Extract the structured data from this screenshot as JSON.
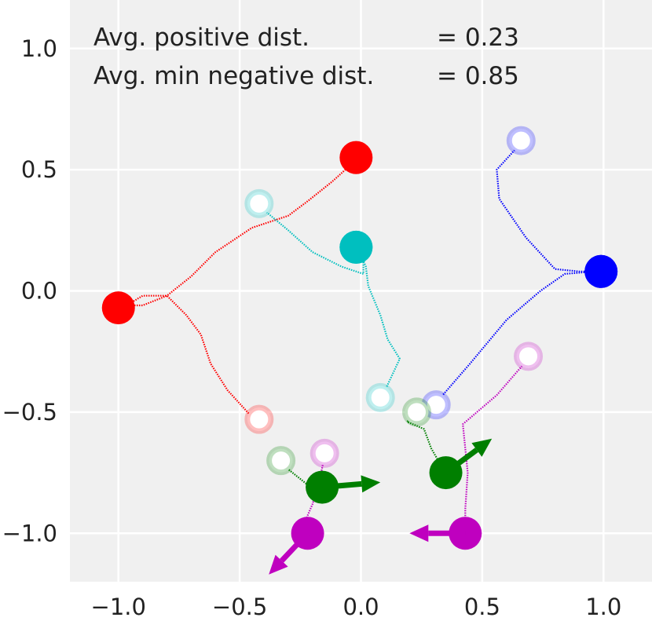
{
  "chart_data": {
    "type": "scatter",
    "title": "",
    "xlabel": "",
    "ylabel": "",
    "xlim": [
      -1.2,
      1.2
    ],
    "ylim": [
      -1.2,
      1.2
    ],
    "grid": true,
    "background": "#f0f0f0",
    "x_ticks": [
      {
        "value": -1.0,
        "label": "−1.0"
      },
      {
        "value": -0.5,
        "label": "−0.5"
      },
      {
        "value": 0.0,
        "label": "0.0"
      },
      {
        "value": 0.5,
        "label": "0.5"
      },
      {
        "value": 1.0,
        "label": "1.0"
      }
    ],
    "y_ticks": [
      {
        "value": 1.0,
        "label": "1.0"
      },
      {
        "value": 0.5,
        "label": "0.5"
      },
      {
        "value": 0.0,
        "label": "0.0"
      },
      {
        "value": -0.5,
        "label": "−0.5"
      },
      {
        "value": -1.0,
        "label": "−1.0"
      }
    ],
    "annotations": {
      "positive_label": "Avg. positive dist.",
      "positive_value": "= 0.23",
      "negative_label": "Avg. min negative dist.",
      "negative_value": "= 0.85"
    },
    "series": [
      {
        "name": "red",
        "color": "#ff0000",
        "agents": [
          {
            "x": -1.0,
            "y": -0.07,
            "dir": null,
            "path": [
              [
                -0.45,
                -0.52
              ],
              [
                -0.55,
                -0.41
              ],
              [
                -0.62,
                -0.3
              ],
              [
                -0.66,
                -0.18
              ],
              [
                -0.72,
                -0.1
              ],
              [
                -0.8,
                -0.02
              ],
              [
                -0.9,
                -0.02
              ],
              [
                -0.95,
                -0.05
              ]
            ]
          },
          {
            "x": -0.02,
            "y": 0.55,
            "dir": null,
            "path": [
              [
                -0.02,
                0.54
              ],
              [
                -0.12,
                0.45
              ],
              [
                -0.22,
                0.37
              ],
              [
                -0.3,
                0.31
              ],
              [
                -0.45,
                0.26
              ],
              [
                -0.6,
                0.16
              ],
              [
                -0.7,
                0.06
              ],
              [
                -0.8,
                -0.02
              ],
              [
                -0.9,
                -0.06
              ],
              [
                -0.95,
                -0.06
              ]
            ]
          }
        ],
        "goals": [
          {
            "x": -0.02,
            "y": 0.56
          },
          {
            "x": -0.42,
            "y": -0.53
          }
        ]
      },
      {
        "name": "cyan",
        "color": "#00bfbf",
        "agents": [
          {
            "x": -0.02,
            "y": 0.18,
            "dir": null,
            "path": [
              [
                0.09,
                -0.43
              ],
              [
                0.16,
                -0.28
              ],
              [
                0.11,
                -0.2
              ],
              [
                0.08,
                -0.1
              ],
              [
                0.03,
                0.02
              ],
              [
                0.02,
                0.1
              ],
              [
                0.0,
                0.15
              ]
            ]
          },
          {
            "x": -0.02,
            "y": 0.18,
            "dir": null,
            "path": [
              [
                -0.42,
                0.35
              ],
              [
                -0.3,
                0.25
              ],
              [
                -0.2,
                0.16
              ],
              [
                -0.08,
                0.1
              ],
              [
                0.01,
                0.07
              ],
              [
                0.01,
                0.12
              ]
            ]
          }
        ],
        "goals": [
          {
            "x": -0.42,
            "y": 0.36
          },
          {
            "x": 0.08,
            "y": -0.44
          }
        ]
      },
      {
        "name": "blue",
        "color": "#0000ff",
        "agents": [
          {
            "x": 0.99,
            "y": 0.08,
            "dir": null,
            "path": [
              [
                0.66,
                0.61
              ],
              [
                0.56,
                0.5
              ],
              [
                0.57,
                0.38
              ],
              [
                0.68,
                0.22
              ],
              [
                0.8,
                0.09
              ],
              [
                0.9,
                0.08
              ],
              [
                0.96,
                0.08
              ]
            ]
          },
          {
            "x": 0.99,
            "y": 0.08,
            "dir": null,
            "path": [
              [
                0.32,
                -0.45
              ],
              [
                0.45,
                -0.3
              ],
              [
                0.6,
                -0.12
              ],
              [
                0.74,
                0.0
              ],
              [
                0.84,
                0.07
              ],
              [
                0.96,
                0.08
              ]
            ]
          }
        ],
        "goals": [
          {
            "x": 0.66,
            "y": 0.62
          },
          {
            "x": 0.31,
            "y": -0.47
          }
        ]
      },
      {
        "name": "green",
        "color": "#007f00",
        "agents": [
          {
            "x": -0.16,
            "y": -0.81,
            "dir": [
              0.24,
              0.02
            ],
            "path": [
              [
                -0.32,
                -0.72
              ],
              [
                -0.27,
                -0.76
              ],
              [
                -0.22,
                -0.8
              ],
              [
                -0.19,
                -0.82
              ]
            ]
          },
          {
            "x": 0.35,
            "y": -0.75,
            "dir": [
              0.19,
              0.14
            ],
            "path": [
              [
                0.24,
                -0.5
              ],
              [
                0.19,
                -0.54
              ],
              [
                0.26,
                -0.57
              ],
              [
                0.29,
                -0.65
              ],
              [
                0.33,
                -0.72
              ]
            ]
          }
        ],
        "goals": [
          {
            "x": -0.33,
            "y": -0.7
          },
          {
            "x": 0.23,
            "y": -0.5
          }
        ]
      },
      {
        "name": "magenta",
        "color": "#bf00bf",
        "agents": [
          {
            "x": -0.22,
            "y": -1.0,
            "dir": [
              -0.16,
              -0.17
            ],
            "path": [
              [
                -0.15,
                -0.68
              ],
              [
                -0.17,
                -0.78
              ],
              [
                -0.2,
                -0.88
              ],
              [
                -0.23,
                -0.95
              ]
            ]
          },
          {
            "x": 0.43,
            "y": -1.0,
            "dir": [
              -0.23,
              0.0
            ],
            "path": [
              [
                0.69,
                -0.28
              ],
              [
                0.56,
                -0.43
              ],
              [
                0.42,
                -0.55
              ],
              [
                0.44,
                -0.75
              ],
              [
                0.43,
                -0.9
              ],
              [
                0.43,
                -0.97
              ]
            ]
          }
        ],
        "goals": [
          {
            "x": -0.15,
            "y": -0.67
          },
          {
            "x": 0.69,
            "y": -0.27
          }
        ]
      }
    ]
  }
}
